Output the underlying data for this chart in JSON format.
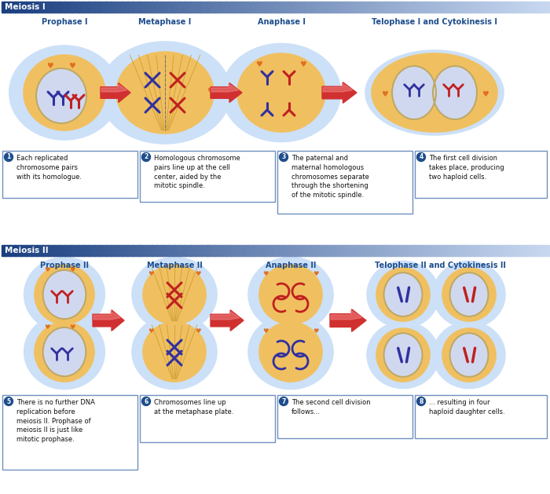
{
  "meiosis1_title": "Meiosis I",
  "meiosis2_title": "Meiosis II",
  "m1_phases": [
    "Prophase I",
    "Metaphase I",
    "Anaphase I",
    "Telophase I and Cytokinesis I"
  ],
  "m2_phases": [
    "Prophase II",
    "Metaphase II",
    "Anaphase II",
    "Telophase II and Cytokinesis II"
  ],
  "m1_texts": [
    "1  Each replicated\nchromosome pairs\nwith its homologue.",
    "2  Homologous chromosome\npairs line up at the cell\ncenter, aided by the\nmitotic spindle.",
    "3  The paternal and\nmaternal homologous\nchromosomes separate\nthrough the shortening\nof the mitotic spindle.",
    "4  The first cell division\ntakes place, producing\ntwo haploid cells."
  ],
  "m2_texts": [
    "5  There is no further DNA\nreplication before\nmeiosis II. Prophase of\nmeiosis II is just like\nmitotic prophase.",
    "6  Chromosomes line up\nat the metaphase plate.",
    "7  The second cell division\nfollows...",
    "8  ... resulting in four\nhaploid daughter cells."
  ],
  "header_left": "#1a3f80",
  "header_right": "#c8d8f0",
  "phase_text_color": "#1e4d8c",
  "cell_yellow": "#f0c060",
  "cell_light_yellow": "#f8e090",
  "nucleus_tan": "#e8ddb0",
  "nucleus_border": "#c0a860",
  "cell_glow": "#cce0f8",
  "nucleus_blue_glow": "#d0d8f0",
  "arrow_red": "#d03030",
  "arrow_highlight": "#f08080",
  "chr_blue": "#3030a0",
  "chr_red": "#c02020",
  "chr_orange": "#e07020",
  "box_border": "#7090c0",
  "box_bg": "#ffffff",
  "text_black": "#111111",
  "bullet_bg": "#1e4d8c",
  "bullet_fg": "#ffffff",
  "white": "#ffffff"
}
